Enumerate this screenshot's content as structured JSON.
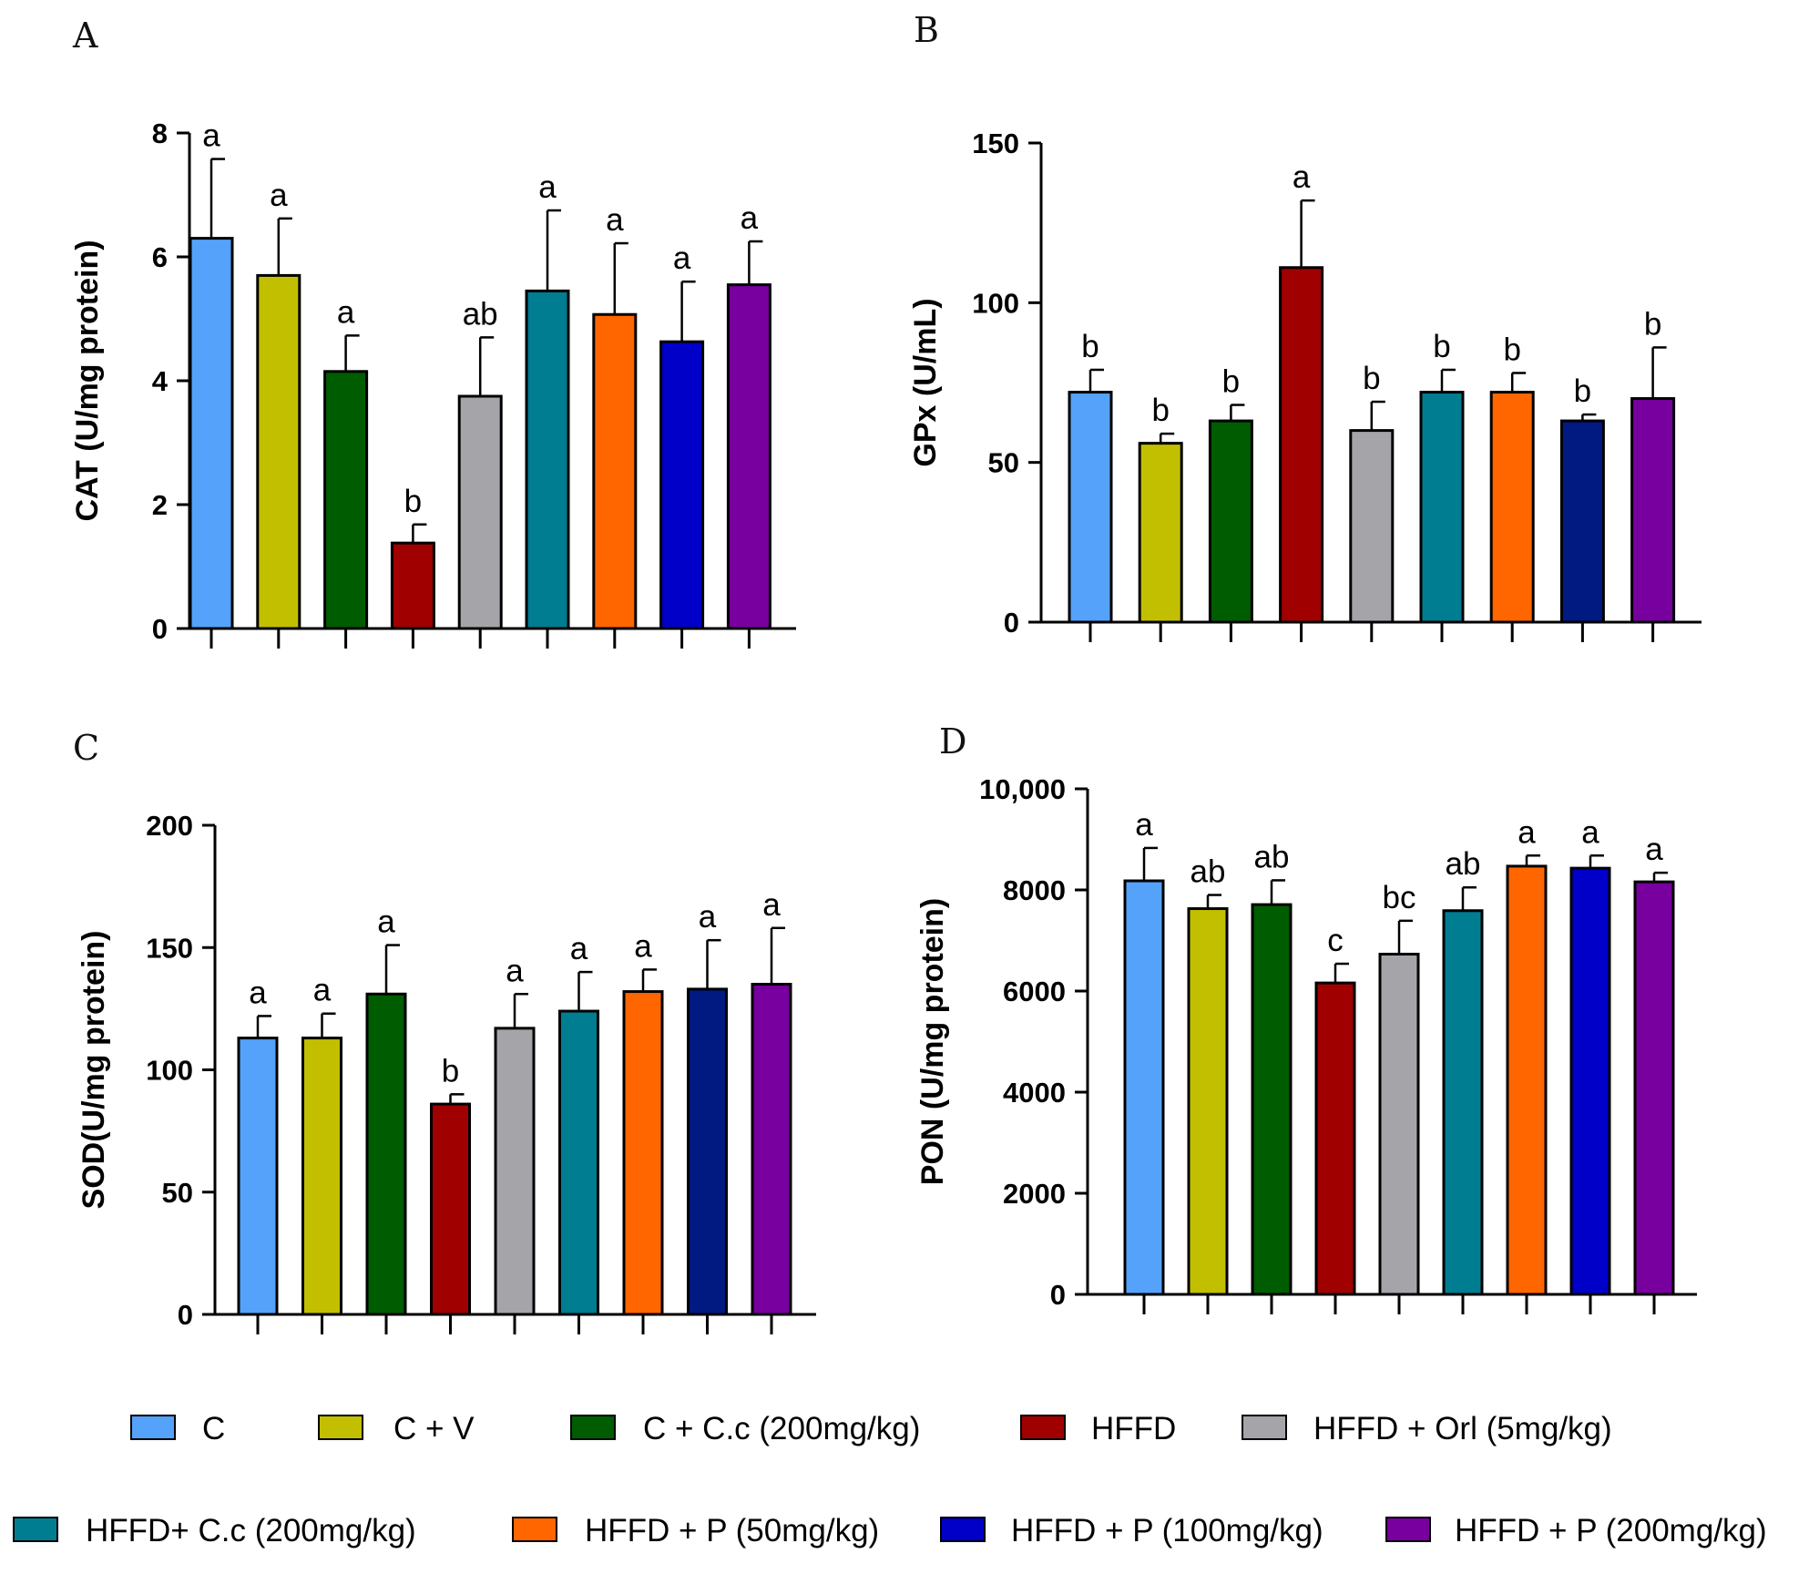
{
  "legend": {
    "items": [
      {
        "label": "C",
        "color": "#55A2FA"
      },
      {
        "label": "C + V",
        "color": "#C2BF01"
      },
      {
        "label": "C + C.c (200mg/kg)",
        "color": "#005C00"
      },
      {
        "label": "HFFD",
        "color": "#A00000"
      },
      {
        "label": "HFFD + Orl (5mg/kg)",
        "color": "#A5A5A9"
      },
      {
        "label": "HFFD+ C.c (200mg/kg)",
        "color": "#007D91"
      },
      {
        "label": "HFFD + P (50mg/kg)",
        "color": "#FF6600"
      },
      {
        "label": "HFFD + P (100mg/kg)",
        "color": "#0000C8"
      },
      {
        "label": "HFFD + P (200mg/kg)",
        "color": "#77009E"
      }
    ]
  },
  "chart_data": [
    {
      "panel": "A",
      "type": "bar",
      "ylabel": "CAT (U/mg protein)",
      "ylim": [
        0,
        8
      ],
      "yticks": [
        "0",
        "2",
        "4",
        "6",
        "8"
      ],
      "values": [
        6.3,
        5.7,
        4.15,
        1.38,
        3.75,
        5.45,
        5.07,
        4.63,
        5.55
      ],
      "errors": [
        1.28,
        0.92,
        0.58,
        0.3,
        0.95,
        1.3,
        1.15,
        0.97,
        0.7
      ],
      "significance": [
        "a",
        "a",
        "a",
        "b",
        "ab",
        "a",
        "a",
        "a",
        "a"
      ],
      "colors": [
        "#55A2FA",
        "#C2BF01",
        "#005C00",
        "#A00000",
        "#A5A5A9",
        "#007D91",
        "#FF6600",
        "#0000C8",
        "#77009E"
      ]
    },
    {
      "panel": "B",
      "type": "bar",
      "ylabel": "GPx (U/mL)",
      "ylim": [
        0,
        150
      ],
      "yticks": [
        "0",
        "50",
        "100",
        "150"
      ],
      "values": [
        72,
        56,
        63,
        111,
        60,
        72,
        72,
        63,
        70
      ],
      "errors": [
        7,
        3,
        5,
        21,
        9,
        7,
        6,
        2,
        16
      ],
      "significance": [
        "b",
        "b",
        "b",
        "a",
        "b",
        "b",
        "b",
        "b",
        "b"
      ],
      "colors": [
        "#55A2FA",
        "#C2BF01",
        "#005C00",
        "#A00000",
        "#A5A5A9",
        "#007D91",
        "#FF6600",
        "#001A82",
        "#77009E"
      ]
    },
    {
      "panel": "C",
      "type": "bar",
      "ylabel": "SOD(U/mg protein)",
      "ylim": [
        0,
        200
      ],
      "yticks": [
        "0",
        "50",
        "100",
        "150",
        "200"
      ],
      "values": [
        113,
        113,
        131,
        86,
        117,
        124,
        132,
        133,
        135
      ],
      "errors": [
        9,
        10,
        20,
        4,
        14,
        16,
        9,
        20,
        23
      ],
      "significance": [
        "a",
        "a",
        "a",
        "b",
        "a",
        "a",
        "a",
        "a",
        "a"
      ],
      "colors": [
        "#55A2FA",
        "#C2BF01",
        "#005C00",
        "#A00000",
        "#A5A5A9",
        "#007D91",
        "#FF6600",
        "#001A82",
        "#77009E"
      ]
    },
    {
      "panel": "D",
      "type": "bar",
      "ylabel": "PON (U/mg protein)",
      "ylim": [
        0,
        10000
      ],
      "yticks": [
        "0",
        "2000",
        "4000",
        "6000",
        "8000",
        "10,000"
      ],
      "values": [
        8180,
        7630,
        7710,
        6160,
        6730,
        7590,
        8470,
        8430,
        8160
      ],
      "errors": [
        650,
        270,
        480,
        380,
        660,
        460,
        210,
        250,
        180
      ],
      "significance": [
        "a",
        "ab",
        "ab",
        "c",
        "bc",
        "ab",
        "a",
        "a",
        "a"
      ],
      "colors": [
        "#55A2FA",
        "#C2BF01",
        "#005C00",
        "#A00000",
        "#A5A5A9",
        "#007D91",
        "#FF6600",
        "#0000C8",
        "#77009E"
      ]
    }
  ]
}
